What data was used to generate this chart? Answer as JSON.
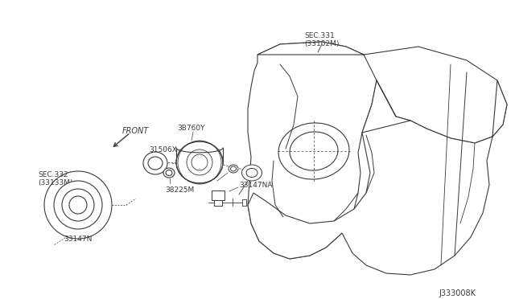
{
  "bg_color": "#ffffff",
  "line_color": "#3a3a3a",
  "text_color": "#3a3a3a",
  "diagram_id": "J333008K",
  "labels": {
    "sec331": "SEC.331\n(33102M)",
    "sec332": "SEC.332\n(33133M)",
    "part_3B760Y": "3B760Y",
    "part_31506X": "31506X",
    "part_33147NA": "33147NA",
    "part_38225M": "38225M",
    "part_33147N": "33147N",
    "front": "FRONT"
  }
}
